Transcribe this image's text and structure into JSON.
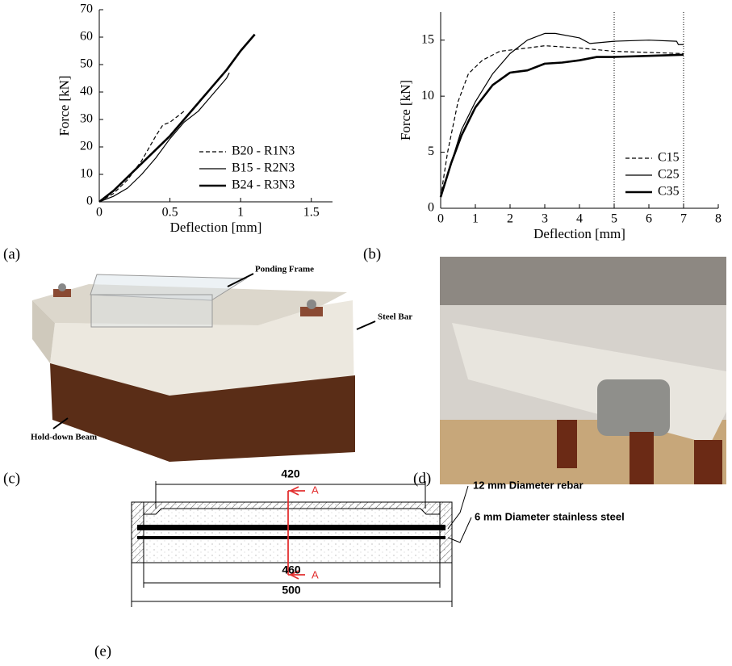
{
  "chart_data": [
    {
      "type": "line",
      "xlabel": "Deflection [mm]",
      "ylabel": "Force [kN]",
      "xlim": [
        0,
        1.65
      ],
      "xticks": [
        0,
        0.5,
        1,
        1.5
      ],
      "ylim": [
        0,
        70
      ],
      "yticks": [
        0,
        10,
        20,
        30,
        40,
        50,
        60,
        70
      ],
      "legend": "lower right",
      "series": [
        {
          "name": "B20 - R1N3",
          "color": "#000000",
          "dashed": true,
          "width": 1.2,
          "x": [
            0,
            0.1,
            0.2,
            0.3,
            0.4,
            0.45,
            0.5,
            0.55,
            0.6
          ],
          "values": [
            0,
            3,
            8,
            15,
            24,
            28,
            29,
            31,
            33
          ]
        },
        {
          "name": "B15 - R2N3",
          "color": "#000000",
          "dashed": false,
          "width": 1.2,
          "x": [
            0,
            0.1,
            0.2,
            0.3,
            0.4,
            0.5,
            0.6,
            0.7,
            0.8,
            0.9,
            0.92
          ],
          "values": [
            0,
            2,
            5,
            10,
            16,
            23,
            29,
            33,
            39,
            45,
            47
          ]
        },
        {
          "name": "B24 - R3N3",
          "color": "#000000",
          "dashed": false,
          "width": 2.6,
          "x": [
            0,
            0.1,
            0.2,
            0.3,
            0.4,
            0.5,
            0.6,
            0.7,
            0.8,
            0.9,
            1.0,
            1.1
          ],
          "values": [
            0,
            4,
            9,
            14,
            19,
            24,
            30,
            36,
            42,
            48,
            55,
            61
          ]
        }
      ]
    },
    {
      "type": "line",
      "xlabel": "Deflection [mm]",
      "ylabel": "Force [kN]",
      "xlim": [
        0,
        8
      ],
      "xticks": [
        0,
        1,
        2,
        3,
        4,
        5,
        6,
        7,
        8
      ],
      "ylim": [
        0,
        17.5
      ],
      "yticks": [
        0,
        5,
        10,
        15
      ],
      "vlines": [
        5,
        7
      ],
      "legend": "lower right",
      "series": [
        {
          "name": "C15",
          "color": "#000000",
          "dashed": true,
          "width": 1.2,
          "x": [
            0,
            0.2,
            0.5,
            0.8,
            1.2,
            1.7,
            2.5,
            3,
            4,
            5,
            6,
            7
          ],
          "values": [
            1,
            5,
            9.5,
            12,
            13.2,
            14,
            14.3,
            14.5,
            14.3,
            14,
            13.9,
            13.8
          ]
        },
        {
          "name": "C25",
          "color": "#000000",
          "dashed": false,
          "width": 1.2,
          "x": [
            0,
            0.3,
            0.6,
            1,
            1.5,
            2,
            2.5,
            3,
            3.3,
            4,
            4.3,
            5,
            6,
            6.8,
            6.85,
            7
          ],
          "values": [
            1,
            4,
            7,
            9.5,
            12,
            13.8,
            15,
            15.6,
            15.6,
            15.2,
            14.7,
            14.9,
            15,
            14.9,
            14.6,
            14.6
          ]
        },
        {
          "name": "C35",
          "color": "#000000",
          "dashed": false,
          "width": 2.6,
          "x": [
            0,
            0.3,
            0.6,
            1,
            1.5,
            2,
            2.5,
            3,
            3.5,
            4,
            4.5,
            5,
            6,
            7
          ],
          "values": [
            1,
            4,
            6.5,
            9,
            11,
            12.1,
            12.3,
            12.9,
            13,
            13.2,
            13.5,
            13.5,
            13.6,
            13.7
          ]
        }
      ]
    }
  ],
  "panel_labels": [
    "(a)",
    "(b)",
    "(c)",
    "(d)",
    "(e)"
  ],
  "photo_c": {
    "annotations": [
      "Ponding Frame",
      "Steel Bar",
      "Hold-down Beam"
    ]
  },
  "diagram": {
    "dimensions": [
      420,
      460,
      500
    ],
    "section": [
      "A",
      "A"
    ],
    "callouts": [
      "12 mm Diameter rebar",
      "6 mm Diameter stainless steel"
    ]
  }
}
